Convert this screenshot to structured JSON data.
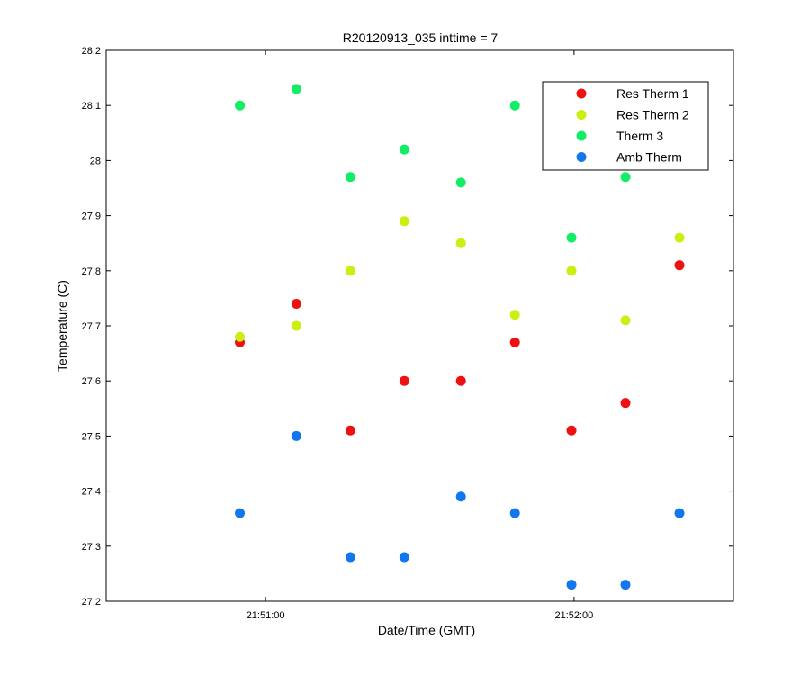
{
  "chart_data": {
    "type": "scatter",
    "title": "R20120913_035 inttime = 7",
    "xlabel": "Date/Time (GMT)",
    "ylabel": "Temperature (C)",
    "xlim_seconds": [
      -31,
      91
    ],
    "ylim": [
      27.2,
      28.2
    ],
    "x_ticks": [
      {
        "t": 0,
        "label": "21:51:00"
      },
      {
        "t": 60,
        "label": "21:52:00"
      }
    ],
    "y_ticks": [
      27.2,
      27.3,
      27.4,
      27.5,
      27.6,
      27.7,
      27.8,
      27.9,
      28,
      28.1,
      28.2
    ],
    "y_tick_labels": [
      "27.2",
      "27.3",
      "27.4",
      "27.5",
      "27.6",
      "27.7",
      "27.8",
      "27.9",
      "28",
      "28.1",
      "28.2"
    ],
    "x_seconds": [
      -5,
      6,
      16.5,
      27,
      38,
      48.5,
      59.5,
      70,
      80.5
    ],
    "legend_position": "top-right",
    "grid": false,
    "series": [
      {
        "name": "Res Therm 1",
        "color": "#ee1111",
        "points": [
          [
            -5,
            27.67
          ],
          [
            6,
            27.74
          ],
          [
            16.5,
            27.51
          ],
          [
            27,
            27.6
          ],
          [
            38,
            27.6
          ],
          [
            48.5,
            27.67
          ],
          [
            59.5,
            27.51
          ],
          [
            70,
            27.56
          ],
          [
            80.5,
            27.81
          ]
        ]
      },
      {
        "name": "Res Therm 2",
        "color": "#ccee11",
        "points": [
          [
            -5,
            27.68
          ],
          [
            6,
            27.7
          ],
          [
            16.5,
            27.8
          ],
          [
            27,
            27.89
          ],
          [
            38,
            27.85
          ],
          [
            48.5,
            27.72
          ],
          [
            59.5,
            27.8
          ],
          [
            70,
            27.71
          ],
          [
            80.5,
            27.86
          ]
        ]
      },
      {
        "name": "Therm 3",
        "color": "#11ee66",
        "points": [
          [
            -5,
            28.1
          ],
          [
            6,
            28.13
          ],
          [
            16.5,
            27.97
          ],
          [
            27,
            28.02
          ],
          [
            38,
            27.96
          ],
          [
            48.5,
            28.1
          ],
          [
            59.5,
            27.86
          ],
          [
            70,
            27.97
          ]
        ]
      },
      {
        "name": "Amb Therm",
        "color": "#1177ee",
        "points": [
          [
            -5,
            27.36
          ],
          [
            6,
            27.5
          ],
          [
            16.5,
            27.28
          ],
          [
            27,
            27.28
          ],
          [
            38,
            27.39
          ],
          [
            48.5,
            27.36
          ],
          [
            59.5,
            27.23
          ],
          [
            70,
            27.23
          ],
          [
            80.5,
            27.36
          ]
        ]
      }
    ]
  }
}
